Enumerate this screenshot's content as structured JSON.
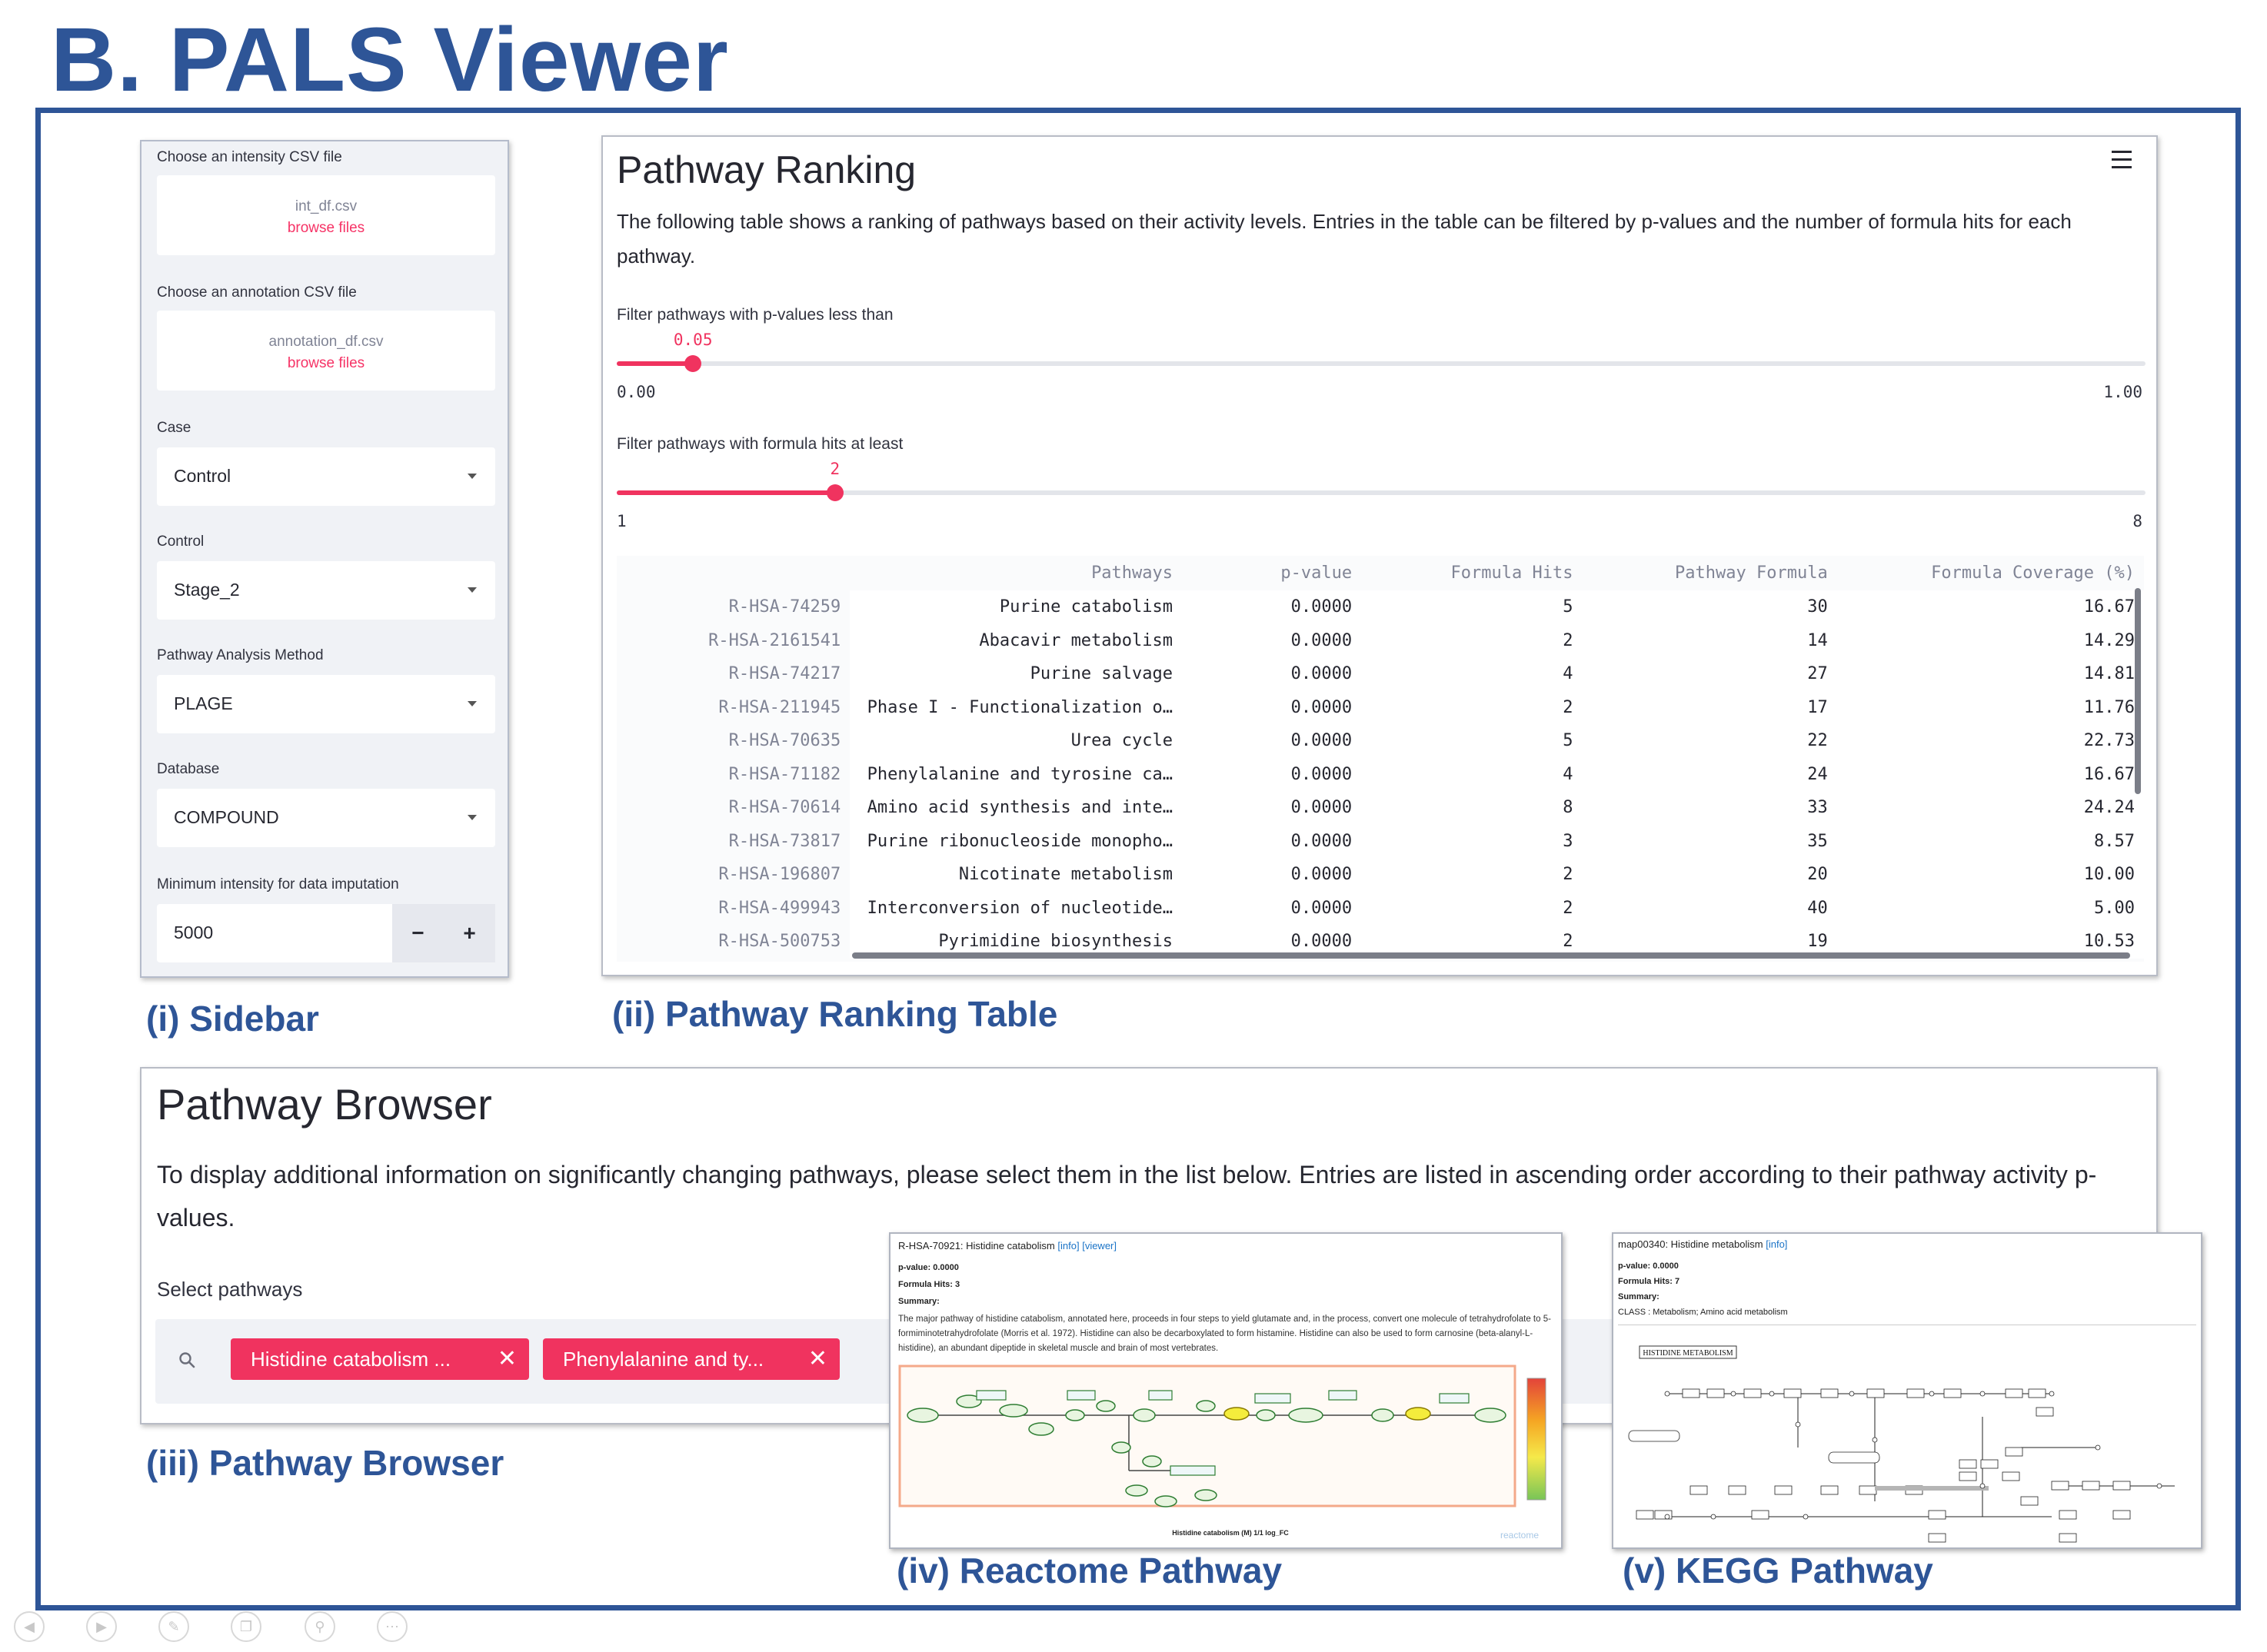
{
  "figure": {
    "title": "B. PALS Viewer",
    "captions": {
      "sidebar": "(i) Sidebar",
      "ranking": "(ii) Pathway Ranking Table",
      "browser": "(iii) Pathway Browser",
      "reactome": "(iv) Reactome Pathway",
      "kegg": "(v) KEGG Pathway"
    }
  },
  "sidebar": {
    "intensity_label": "Choose an intensity CSV file",
    "intensity_file": "int_df.csv",
    "intensity_browse": "browse files",
    "annotation_label": "Choose an annotation CSV file",
    "annotation_file": "annotation_df.csv",
    "annotation_browse": "browse files",
    "case_label": "Case",
    "case_value": "Control",
    "control_label": "Control",
    "control_value": "Stage_2",
    "method_label": "Pathway Analysis Method",
    "method_value": "PLAGE",
    "database_label": "Database",
    "database_value": "COMPOUND",
    "min_intensity_label": "Minimum intensity for data imputation",
    "min_intensity_value": "5000",
    "minus": "−",
    "plus": "+"
  },
  "ranking": {
    "title": "Pathway Ranking",
    "description": "The following table shows a ranking of pathways based on their activity levels. Entries in the table can be filtered by p-values and the number of formula hits for each pathway.",
    "pvalue_slider": {
      "label": "Filter pathways with p-values less than",
      "value": 0.05,
      "value_text": "0.05",
      "min": 0.0,
      "max": 1.0,
      "min_text": "0.00",
      "max_text": "1.00"
    },
    "hits_slider": {
      "label": "Filter pathways with formula hits at least",
      "value": 2,
      "value_text": "2",
      "min": 1,
      "max": 8,
      "min_text": "1",
      "max_text": "8"
    },
    "columns": [
      "Pathways",
      "p-value",
      "Formula Hits",
      "Pathway Formula",
      "Formula Coverage (%)"
    ],
    "rows": [
      [
        "R-HSA-74259",
        "Purine catabolism",
        "0.0000",
        "5",
        "30",
        "16.67"
      ],
      [
        "R-HSA-2161541",
        "Abacavir metabolism",
        "0.0000",
        "2",
        "14",
        "14.29"
      ],
      [
        "R-HSA-74217",
        "Purine salvage",
        "0.0000",
        "4",
        "27",
        "14.81"
      ],
      [
        "R-HSA-211945",
        "Phase I - Functionalization o…",
        "0.0000",
        "2",
        "17",
        "11.76"
      ],
      [
        "R-HSA-70635",
        "Urea cycle",
        "0.0000",
        "5",
        "22",
        "22.73"
      ],
      [
        "R-HSA-71182",
        "Phenylalanine and tyrosine ca…",
        "0.0000",
        "4",
        "24",
        "16.67"
      ],
      [
        "R-HSA-70614",
        "Amino acid synthesis and inte…",
        "0.0000",
        "8",
        "33",
        "24.24"
      ],
      [
        "R-HSA-73817",
        "Purine ribonucleoside monopho…",
        "0.0000",
        "3",
        "35",
        "8.57"
      ],
      [
        "R-HSA-196807",
        "Nicotinate metabolism",
        "0.0000",
        "2",
        "20",
        "10.00"
      ],
      [
        "R-HSA-499943",
        "Interconversion of nucleotide…",
        "0.0000",
        "2",
        "40",
        "5.00"
      ],
      [
        "R-HSA-500753",
        "Pyrimidine biosynthesis",
        "0.0000",
        "2",
        "19",
        "10.53"
      ]
    ]
  },
  "browser": {
    "title": "Pathway Browser",
    "description": "To display additional information on significantly changing pathways, please select them in the list below. Entries are listed in ascending order according to their pathway activity p-values.",
    "select_label": "Select pathways",
    "chips": [
      "Histidine catabolism ...",
      "Phenylalanine and ty..."
    ],
    "chip_close": "✕"
  },
  "reactome": {
    "header": "R-HSA-70921: Histidine catabolism",
    "info_link": "[info]",
    "viewer_link": "[viewer]",
    "pvalue": "p-value: 0.0000",
    "hits": "Formula Hits: 3",
    "summary_label": "Summary:",
    "summary": "The major pathway of histidine catabolism, annotated here, proceeds in four steps to yield glutamate and, in the process, convert one molecule of tetrahydrofolate to 5-formiminotetrahydrofolate (Morris et al. 1972). Histidine can also be decarboxylated to form histamine. Histidine can also be used to form carnosine (beta-alanyl-L-histidine), an abundant dipeptide in skeletal muscle and brain of most vertebrates.",
    "diagram_caption": "Histidine catabolism (M) 1/1 log_FC",
    "watermark": "reactome"
  },
  "kegg": {
    "header": "map00340: Histidine metabolism",
    "info_link": "[info]",
    "pvalue": "p-value: 0.0000",
    "hits": "Formula Hits: 7",
    "summary_label": "Summary:",
    "summary": "CLASS : Metabolism; Amino acid metabolism",
    "map_title": "HISTIDINE METABOLISM"
  },
  "toolbar_icons": [
    "back-icon",
    "forward-icon",
    "pen-icon",
    "copy-icon",
    "zoom-icon",
    "more-icon"
  ],
  "colors": {
    "accent": "#f0335f",
    "figure_blue": "#2e5597"
  }
}
